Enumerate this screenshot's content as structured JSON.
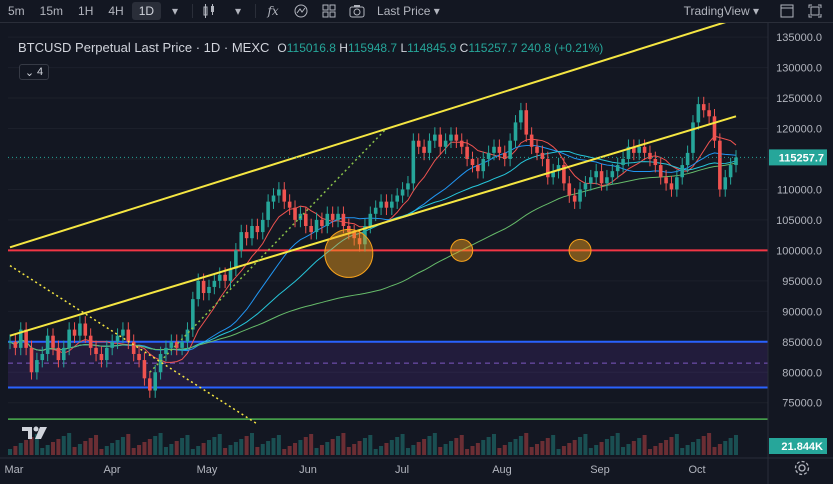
{
  "toolbar": {
    "timeframes": [
      "5m",
      "15m",
      "1H",
      "4H",
      "1D"
    ],
    "active_timeframe": "1D",
    "price_type": "Last Price",
    "brand": "TradingView",
    "icons": [
      "chevron-down-icon",
      "candles-icon",
      "fx-icon",
      "indicators-icon",
      "layout-icon",
      "camera-icon",
      "maximize-icon",
      "fullscreen-icon"
    ]
  },
  "legend": {
    "symbol": "BTCUSD Perpetual Last Price · 1D · MEXC",
    "o_label": "O",
    "o": "115016.8",
    "h_label": "H",
    "h": "115948.7",
    "l_label": "L",
    "l": "114845.9",
    "c_label": "C",
    "c": "115257.7",
    "change": "240.8 (+0.21%)",
    "collapse_label": "4"
  },
  "colors": {
    "background": "#131722",
    "up": "#26a69a",
    "down": "#ef5350",
    "channel": "#f5e642",
    "support": "#f23645",
    "zone": "#2962ff",
    "circles": "#f7a21b"
  },
  "chart_data": {
    "type": "candlestick",
    "y_axis": {
      "ticks": [
        "135000.0",
        "130000.0",
        "125000.0",
        "120000.0",
        "115000.0",
        "110000.0",
        "105000.0",
        "100000.0",
        "95000.0",
        "90000.0",
        "85000.0",
        "80000.0",
        "75000.0"
      ],
      "range": [
        72000,
        136000
      ]
    },
    "x_axis": {
      "labels": [
        "Mar",
        "Apr",
        "May",
        "Jun",
        "Jul",
        "Aug",
        "Sep",
        "Oct"
      ]
    },
    "price_label": "115257.7",
    "volume_label": "21.844K",
    "closes": [
      85000,
      84000,
      87000,
      84000,
      80000,
      82000,
      83000,
      86000,
      84000,
      82000,
      84000,
      87000,
      86000,
      88000,
      86000,
      84000,
      83000,
      82000,
      84000,
      85000,
      86000,
      87000,
      85000,
      83000,
      82000,
      79000,
      77000,
      80000,
      83000,
      84000,
      85000,
      84000,
      85000,
      87000,
      92000,
      95000,
      93000,
      94000,
      95000,
      96000,
      95000,
      97000,
      100000,
      103000,
      102000,
      104000,
      103000,
      105000,
      108000,
      109000,
      110000,
      108000,
      107000,
      105000,
      106000,
      104000,
      103000,
      105000,
      104000,
      106000,
      105000,
      106000,
      104000,
      103000,
      102000,
      101000,
      104000,
      106000,
      107000,
      108000,
      107000,
      108000,
      109000,
      110000,
      111000,
      118000,
      117000,
      116000,
      118000,
      119000,
      117000,
      118000,
      119000,
      118000,
      117000,
      115000,
      114000,
      113000,
      115000,
      116000,
      117000,
      116000,
      115000,
      118000,
      121000,
      123000,
      119000,
      117000,
      116000,
      115000,
      112000,
      113000,
      114000,
      111000,
      109000,
      108000,
      110000,
      111000,
      112000,
      113000,
      111000,
      112000,
      113000,
      114000,
      115000,
      117000,
      116000,
      117000,
      116000,
      115000,
      114000,
      112000,
      111000,
      110000,
      112000,
      114000,
      116000,
      121000,
      124000,
      123000,
      122000,
      118000,
      110000,
      112000,
      114000,
      115258
    ],
    "channel": {
      "upper": [
        [
          0,
          100500
        ],
        [
          135,
          138000
        ]
      ],
      "lower": [
        [
          0,
          86000
        ],
        [
          135,
          122000
        ]
      ],
      "dotted_up": [
        [
          26,
          80000
        ],
        [
          70,
          120000
        ]
      ],
      "dotted_down": [
        [
          0,
          97500
        ],
        [
          46,
          71500
        ]
      ]
    },
    "support_level": 100000,
    "zone": {
      "top": 85000,
      "mid": 81500,
      "bottom": 77500
    },
    "green_line": 72300,
    "circles": [
      {
        "index": 63,
        "price": 99500
      },
      {
        "index": 84,
        "price": 100000
      },
      {
        "index": 106,
        "price": 100000
      }
    ]
  }
}
